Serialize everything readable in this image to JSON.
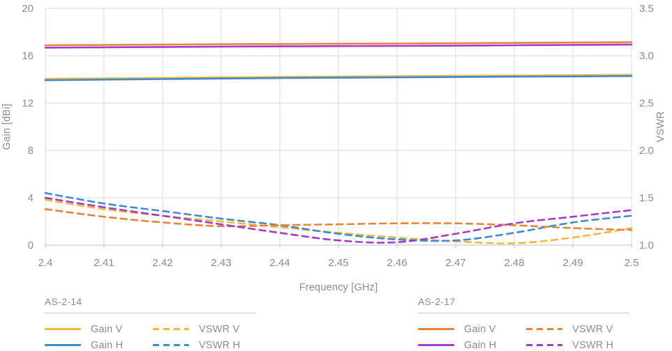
{
  "chart": {
    "x_axis": {
      "title": "Frequency [GHz]",
      "ticks": [
        "2.4",
        "2.41",
        "2.42",
        "2.43",
        "2.44",
        "2.45",
        "2.46",
        "2.47",
        "2.48",
        "2.49",
        "2.5"
      ]
    },
    "left_axis": {
      "title": "Gain [dBi]",
      "ticks": [
        "20",
        "16",
        "12",
        "8",
        "4",
        "0"
      ]
    },
    "right_axis": {
      "title": "VSWR",
      "ticks": [
        "3.5",
        "3.0",
        "2.5",
        "2.0",
        "1.5",
        "1.0"
      ]
    },
    "colors": {
      "as_2_14_v": "#f3b73f",
      "as_2_14_h": "#3e8bd0",
      "as_2_17_v": "#e8823a",
      "as_2_17_h": "#a43bc8",
      "gridline": "#d9d9d9",
      "axis_text": "#8c8c8c"
    }
  },
  "chart_data": {
    "type": "line",
    "title": "",
    "xlabel": "Frequency [GHz]",
    "ylabel_left": "Gain [dBi]",
    "ylabel_right": "VSWR",
    "xlim": [
      2.4,
      2.5
    ],
    "ylim_left": [
      0,
      20
    ],
    "ylim_right": [
      1.0,
      3.5
    ],
    "grid": true,
    "x": [
      2.4,
      2.41,
      2.42,
      2.43,
      2.44,
      2.45,
      2.46,
      2.47,
      2.48,
      2.49,
      2.5
    ],
    "series": [
      {
        "name": "AS-2-14 Gain V",
        "axis": "gain",
        "style": "solid",
        "color": "#f3b73f",
        "values": [
          14.05,
          14.09,
          14.13,
          14.17,
          14.21,
          14.24,
          14.27,
          14.3,
          14.33,
          14.36,
          14.38
        ]
      },
      {
        "name": "AS-2-14 Gain H",
        "axis": "gain",
        "style": "solid",
        "color": "#3e8bd0",
        "values": [
          13.93,
          13.98,
          14.03,
          14.07,
          14.11,
          14.14,
          14.17,
          14.2,
          14.23,
          14.25,
          14.28
        ]
      },
      {
        "name": "AS-2-17 Gain V",
        "axis": "gain",
        "style": "solid",
        "color": "#e8823a",
        "values": [
          16.88,
          16.91,
          16.94,
          16.97,
          16.99,
          17.01,
          17.03,
          17.05,
          17.08,
          17.11,
          17.14
        ]
      },
      {
        "name": "AS-2-17 Gain H",
        "axis": "gain",
        "style": "solid",
        "color": "#a43bc8",
        "values": [
          16.68,
          16.71,
          16.74,
          16.77,
          16.79,
          16.81,
          16.83,
          16.85,
          16.88,
          16.91,
          16.94
        ]
      },
      {
        "name": "AS-2-14 VSWR V",
        "axis": "vswr",
        "style": "dashed",
        "color": "#f3b73f",
        "values": [
          1.48,
          1.38,
          1.31,
          1.25,
          1.19,
          1.13,
          1.08,
          1.04,
          1.02,
          1.08,
          1.18
        ]
      },
      {
        "name": "AS-2-14 VSWR H",
        "axis": "vswr",
        "style": "dashed",
        "color": "#3e8bd0",
        "values": [
          1.55,
          1.44,
          1.36,
          1.28,
          1.21,
          1.12,
          1.06,
          1.05,
          1.13,
          1.24,
          1.31
        ]
      },
      {
        "name": "AS-2-17 VSWR V",
        "axis": "vswr",
        "style": "dashed",
        "color": "#e8823a",
        "values": [
          1.38,
          1.3,
          1.24,
          1.2,
          1.21,
          1.22,
          1.23,
          1.23,
          1.21,
          1.18,
          1.16
        ]
      },
      {
        "name": "AS-2-17 VSWR H",
        "axis": "vswr",
        "style": "dashed",
        "color": "#a43bc8",
        "values": [
          1.5,
          1.4,
          1.31,
          1.22,
          1.13,
          1.05,
          1.03,
          1.12,
          1.23,
          1.3,
          1.37
        ]
      }
    ]
  },
  "legend": {
    "groups": [
      {
        "title": "AS-2-14",
        "entries": [
          {
            "label": "Gain V",
            "style": "solid",
            "color": "#f3b73f"
          },
          {
            "label": "VSWR V",
            "style": "dashed",
            "color": "#f3b73f"
          },
          {
            "label": "Gain H",
            "style": "solid",
            "color": "#3e8bd0"
          },
          {
            "label": "VSWR H",
            "style": "dashed",
            "color": "#3e8bd0"
          }
        ]
      },
      {
        "title": "AS-2-17",
        "entries": [
          {
            "label": "Gain V",
            "style": "solid",
            "color": "#e8823a"
          },
          {
            "label": "VSWR V",
            "style": "dashed",
            "color": "#e8823a"
          },
          {
            "label": "Gain H",
            "style": "solid",
            "color": "#a43bc8"
          },
          {
            "label": "VSWR H",
            "style": "dashed",
            "color": "#a43bc8"
          }
        ]
      }
    ]
  }
}
